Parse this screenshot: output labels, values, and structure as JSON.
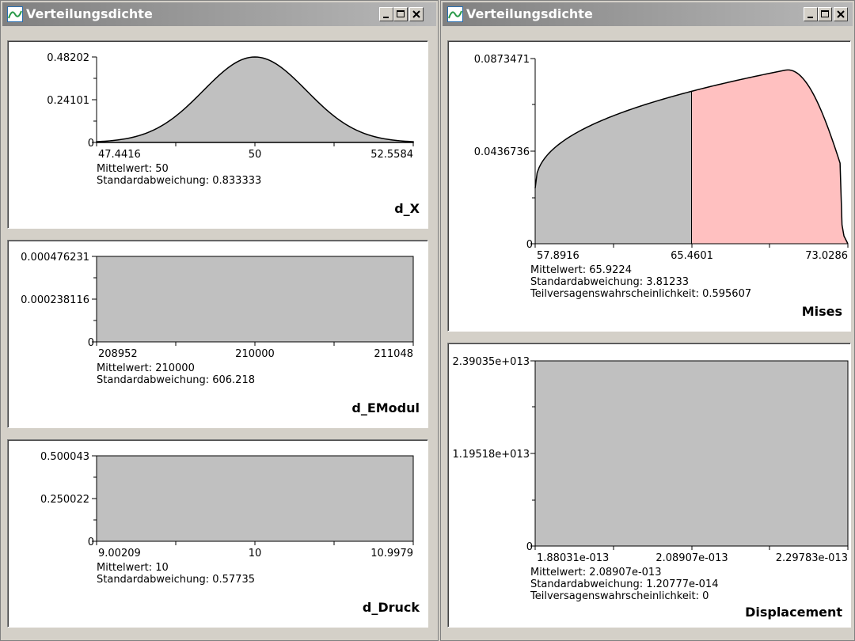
{
  "windows": [
    {
      "title": "Verteilungsdichte",
      "panels": [
        {
          "name": "d_X",
          "shape": "normal",
          "ytick_labels": [
            "0.48202",
            "0.24101",
            "0"
          ],
          "xtick_labels": [
            "47.4416",
            "50",
            "52.5584"
          ],
          "stats": [
            "Mittelwert: 50",
            "Standardabweichung: 0.833333"
          ],
          "fill_color": "#c0c0c0"
        },
        {
          "name": "d_EModul",
          "shape": "uniform",
          "ytick_labels": [
            "0.000476231",
            "0.000238116",
            "0"
          ],
          "xtick_labels": [
            "208952",
            "210000",
            "211048"
          ],
          "stats": [
            "Mittelwert: 210000",
            "Standardabweichung: 606.218"
          ],
          "fill_color": "#c0c0c0"
        },
        {
          "name": "d_Druck",
          "shape": "uniform",
          "ytick_labels": [
            "0.500043",
            "0.250022",
            "0"
          ],
          "xtick_labels": [
            "9.00209",
            "10",
            "10.9979"
          ],
          "stats": [
            "Mittelwert: 10",
            "Standardabweichung: 0.57735"
          ],
          "fill_color": "#c0c0c0"
        }
      ]
    },
    {
      "title": "Verteilungsdichte",
      "panels": [
        {
          "name": "Mises",
          "shape": "skewed",
          "ytick_labels": [
            "0.0873471",
            "0.0436736",
            "0"
          ],
          "xtick_labels": [
            "57.8916",
            "65.4601",
            "73.0286"
          ],
          "stats": [
            "Mittelwert: 65.9224",
            "Standardabweichung: 3.81233",
            "Teilversagenswahrscheinlichkeit: 0.595607"
          ],
          "fill_color": "#c0c0c0",
          "failure_color": "#ffc0c0",
          "failure_threshold": 65.4601
        },
        {
          "name": "Displacement",
          "shape": "uniform",
          "ytick_labels": [
            "2.39035e+013",
            "1.19518e+013",
            "0"
          ],
          "xtick_labels": [
            "1.88031e-013",
            "2.08907e-013",
            "2.29783e-013"
          ],
          "stats": [
            "Mittelwert: 2.08907e-013",
            "Standardabweichung: 1.20777e-014",
            "Teilversagenswahrscheinlichkeit: 0"
          ],
          "fill_color": "#c0c0c0"
        }
      ]
    }
  ]
}
